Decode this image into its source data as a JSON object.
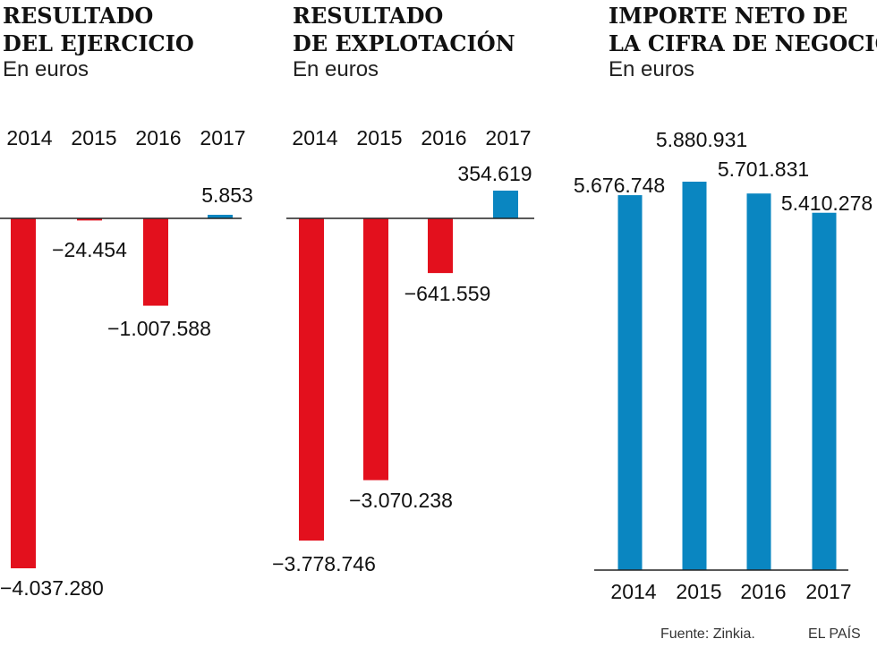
{
  "chart_data": [
    {
      "type": "bar",
      "title_lines": [
        "RESULTADO",
        "DEL EJERCICIO"
      ],
      "subtitle": "En euros",
      "categories": [
        "2014",
        "2015",
        "2016",
        "2017"
      ],
      "values": [
        -4037280,
        -24454,
        -1007588,
        5853
      ],
      "value_labels": [
        "−4.037.280",
        "−24.454",
        "−1.007.588",
        "5.853"
      ],
      "ylim": [
        -4037280,
        5853
      ]
    },
    {
      "type": "bar",
      "title_lines": [
        "RESULTADO",
        "DE EXPLOTACIÓN"
      ],
      "subtitle": "En euros",
      "categories": [
        "2014",
        "2015",
        "2016",
        "2017"
      ],
      "values": [
        -3778746,
        -3070238,
        -641559,
        354619
      ],
      "value_labels": [
        "−3.778.746",
        "−3.070.238",
        "−641.559",
        "354.619"
      ],
      "ylim": [
        -3778746,
        354619
      ]
    },
    {
      "type": "bar",
      "title_lines": [
        "IMPORTE NETO DE",
        "LA CIFRA DE NEGOCIO"
      ],
      "subtitle": "En euros",
      "categories": [
        "2014",
        "2015",
        "2016",
        "2017"
      ],
      "values": [
        5676748,
        5880931,
        5701831,
        5410278
      ],
      "value_labels": [
        "5.676.748",
        "5.880.931",
        "5.701.831",
        "5.410.278"
      ],
      "ylim": [
        0,
        5880931
      ]
    }
  ],
  "colors": {
    "negative": "#e3101d",
    "positive": "#0a86c1",
    "axis": "#222222"
  },
  "footer": {
    "source": "Fuente: Zinkia.",
    "brand": "EL PAÍS"
  }
}
